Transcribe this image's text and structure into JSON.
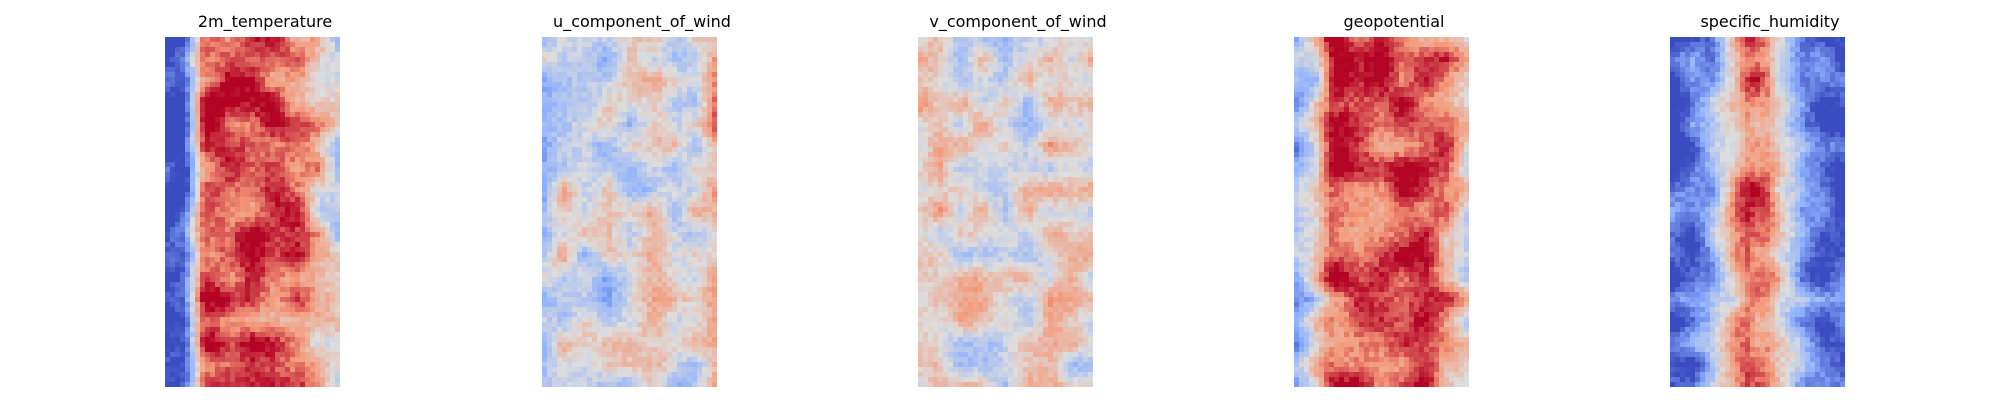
{
  "chart_data": [
    {
      "type": "heatmap",
      "title": "2m_temperature",
      "colormap": "coolwarm",
      "axes": "off",
      "grid": false,
      "profile": [
        0.05,
        0.05,
        0.9,
        0.92,
        0.9,
        0.88,
        0.85,
        0.8,
        0.6,
        0.45
      ],
      "seed": 11
    },
    {
      "type": "heatmap",
      "title": "u_component_of_wind",
      "colormap": "coolwarm",
      "axes": "off",
      "grid": false,
      "profile": [
        0.35,
        0.55,
        0.45,
        0.4,
        0.45,
        0.5,
        0.55,
        0.45,
        0.5,
        0.7
      ],
      "seed": 23
    },
    {
      "type": "heatmap",
      "title": "v_component_of_wind",
      "colormap": "coolwarm",
      "axes": "off",
      "grid": false,
      "profile": [
        0.6,
        0.58,
        0.5,
        0.55,
        0.5,
        0.52,
        0.5,
        0.55,
        0.5,
        0.55
      ],
      "seed": 37
    },
    {
      "type": "heatmap",
      "title": "geopotential",
      "colormap": "coolwarm",
      "axes": "off",
      "grid": false,
      "profile": [
        0.25,
        0.45,
        0.9,
        0.9,
        0.9,
        0.88,
        0.88,
        0.85,
        0.75,
        0.5
      ],
      "seed": 41
    },
    {
      "type": "heatmap",
      "title": "specific_humidity",
      "colormap": "coolwarm",
      "axes": "off",
      "grid": false,
      "profile": [
        0.03,
        0.1,
        0.25,
        0.55,
        0.85,
        0.82,
        0.5,
        0.2,
        0.08,
        0.03
      ],
      "seed": 53
    }
  ]
}
